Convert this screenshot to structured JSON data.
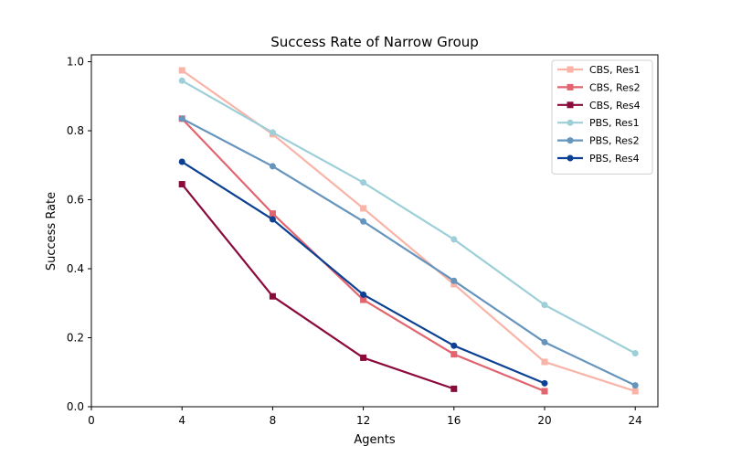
{
  "chart_data": {
    "type": "line",
    "title": "Success Rate of Narrow Group",
    "xlabel": "Agents",
    "ylabel": "Success Rate",
    "xlim": [
      0,
      25
    ],
    "ylim": [
      0,
      1.02
    ],
    "xticks": [
      0,
      4,
      8,
      12,
      16,
      20,
      24
    ],
    "xtick_labels": [
      "0",
      "4",
      "8",
      "12",
      "16",
      "20",
      "24"
    ],
    "yticks": [
      0.0,
      0.2,
      0.4,
      0.6,
      0.8,
      1.0
    ],
    "ytick_labels": [
      "0.0",
      "0.2",
      "0.4",
      "0.6",
      "0.8",
      "1.0"
    ],
    "grid": false,
    "legend_position": "top-right",
    "series": [
      {
        "name": "CBS, Res1",
        "color": "#f9b3a7",
        "marker": "square",
        "x": [
          4,
          8,
          12,
          16,
          20,
          24
        ],
        "values": [
          0.975,
          0.79,
          0.575,
          0.355,
          0.13,
          0.045
        ]
      },
      {
        "name": "CBS, Res2",
        "color": "#e2646e",
        "marker": "square",
        "x": [
          4,
          8,
          12,
          16,
          20
        ],
        "values": [
          0.835,
          0.56,
          0.31,
          0.152,
          0.045
        ]
      },
      {
        "name": "CBS, Res4",
        "color": "#8b0a3c",
        "marker": "square",
        "x": [
          4,
          8,
          12,
          16
        ],
        "values": [
          0.645,
          0.32,
          0.142,
          0.052
        ]
      },
      {
        "name": "PBS, Res1",
        "color": "#9dcfd8",
        "marker": "circle",
        "x": [
          4,
          8,
          12,
          16,
          20,
          24
        ],
        "values": [
          0.945,
          0.795,
          0.65,
          0.485,
          0.295,
          0.155
        ]
      },
      {
        "name": "PBS, Res2",
        "color": "#6594bd",
        "marker": "circle",
        "x": [
          4,
          8,
          12,
          16,
          20,
          24
        ],
        "values": [
          0.835,
          0.697,
          0.537,
          0.365,
          0.187,
          0.062
        ]
      },
      {
        "name": "PBS, Res4",
        "color": "#0b4093",
        "marker": "circle",
        "x": [
          4,
          8,
          12,
          16,
          20
        ],
        "values": [
          0.71,
          0.543,
          0.325,
          0.177,
          0.068
        ]
      }
    ]
  }
}
